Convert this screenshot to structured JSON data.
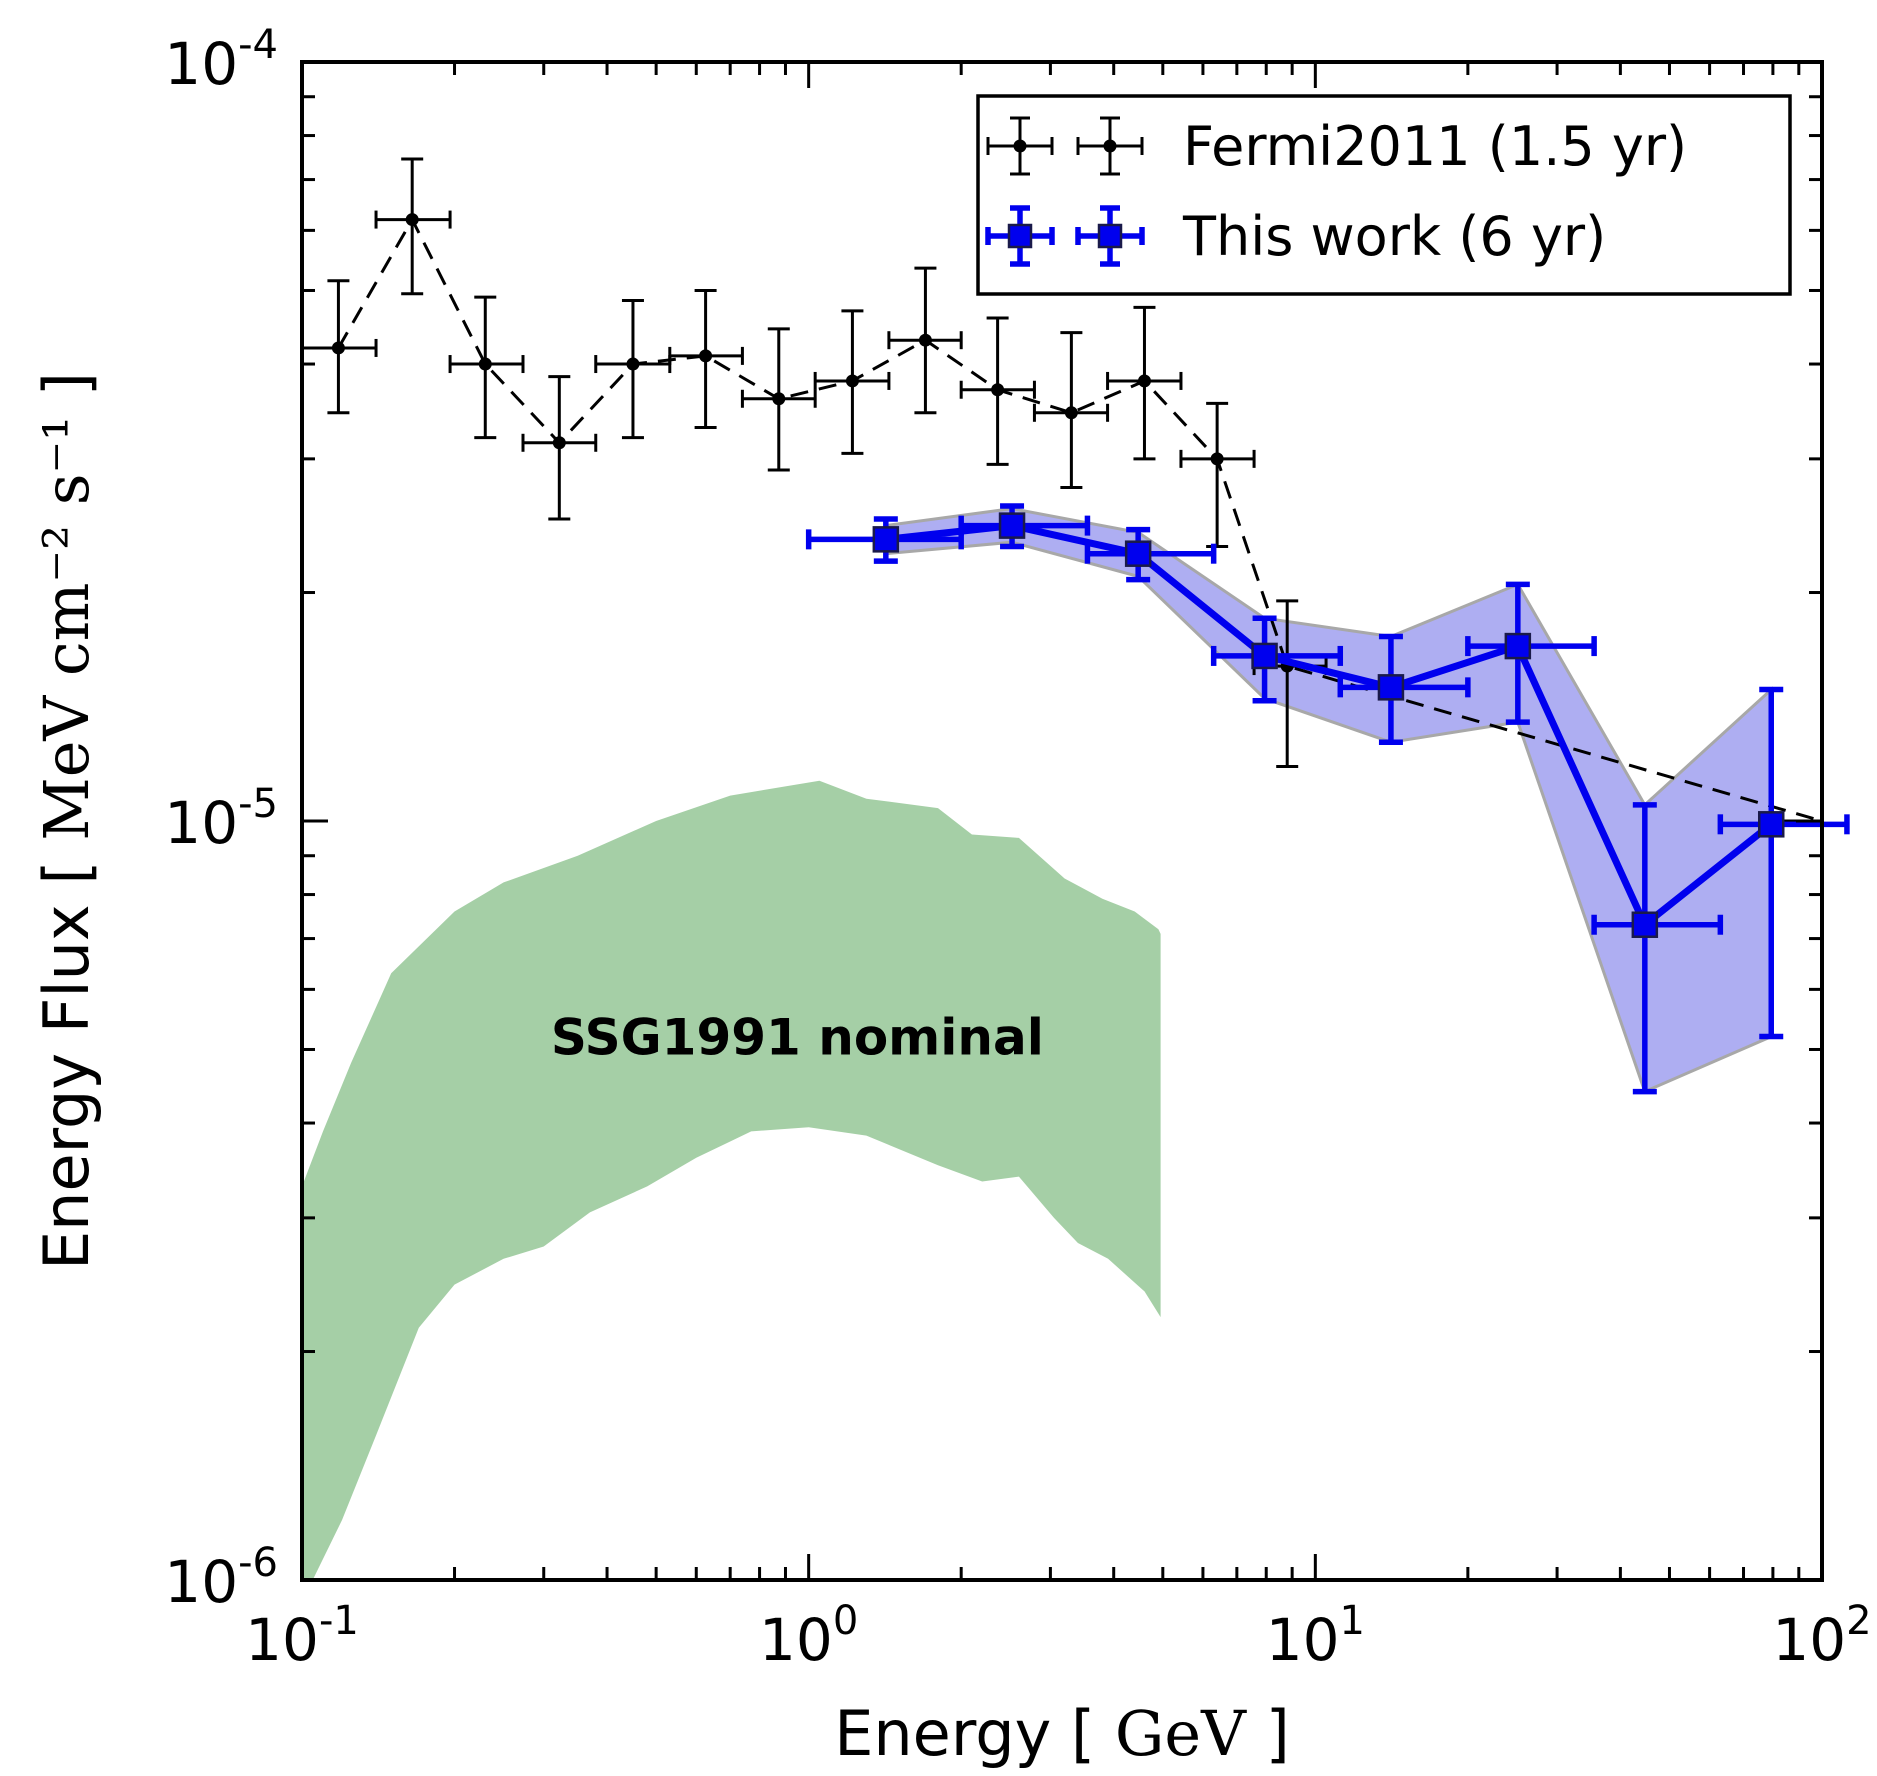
{
  "chart_data": {
    "type": "scatter",
    "xscale": "log",
    "yscale": "log",
    "xlim": [
      0.1,
      100
    ],
    "ylim": [
      1e-06,
      0.0001
    ],
    "xlabel": {
      "main": "Energy [ ",
      "unit": "GeV",
      "close": " ]"
    },
    "ylabel": {
      "main": "Energy Flux [ ",
      "unit": "MeV cm⁻² s⁻¹",
      "close": " ]"
    },
    "x_ticks": [
      {
        "value": 0.1,
        "base": "10",
        "exp": "-1"
      },
      {
        "value": 1,
        "base": "10",
        "exp": "0"
      },
      {
        "value": 10,
        "base": "10",
        "exp": "1"
      },
      {
        "value": 100,
        "base": "10",
        "exp": "2"
      }
    ],
    "y_ticks": [
      {
        "value": 1e-06,
        "base": "10",
        "exp": "-6"
      },
      {
        "value": 1e-05,
        "base": "10",
        "exp": "-5"
      },
      {
        "value": 0.0001,
        "base": "10",
        "exp": "-4"
      }
    ],
    "legend_position": "top-right",
    "series": [
      {
        "name": "Fermi2011 (1.5 yr)",
        "color": "#000000",
        "style": "dashed",
        "points": [
          {
            "x": 0.118,
            "y": 4.2e-05,
            "xlo": 0.1,
            "xhi": 0.14,
            "ylo": 3.45e-05,
            "yhi": 5.15e-05
          },
          {
            "x": 0.165,
            "y": 6.2e-05,
            "xlo": 0.14,
            "xhi": 0.196,
            "ylo": 4.95e-05,
            "yhi": 7.45e-05
          },
          {
            "x": 0.23,
            "y": 4e-05,
            "xlo": 0.196,
            "xhi": 0.273,
            "ylo": 3.2e-05,
            "yhi": 4.9e-05
          },
          {
            "x": 0.322,
            "y": 3.15e-05,
            "xlo": 0.273,
            "xhi": 0.38,
            "ylo": 2.5e-05,
            "yhi": 3.85e-05
          },
          {
            "x": 0.45,
            "y": 4e-05,
            "xlo": 0.38,
            "xhi": 0.532,
            "ylo": 3.2e-05,
            "yhi": 4.85e-05
          },
          {
            "x": 0.626,
            "y": 4.1e-05,
            "xlo": 0.532,
            "xhi": 0.74,
            "ylo": 3.3e-05,
            "yhi": 5e-05
          },
          {
            "x": 0.873,
            "y": 3.6e-05,
            "xlo": 0.74,
            "xhi": 1.03,
            "ylo": 2.9e-05,
            "yhi": 4.45e-05
          },
          {
            "x": 1.22,
            "y": 3.8e-05,
            "xlo": 1.03,
            "xhi": 1.44,
            "ylo": 3.05e-05,
            "yhi": 4.7e-05
          },
          {
            "x": 1.7,
            "y": 4.3e-05,
            "xlo": 1.44,
            "xhi": 2.0,
            "ylo": 3.45e-05,
            "yhi": 5.35e-05
          },
          {
            "x": 2.36,
            "y": 3.7e-05,
            "xlo": 2.0,
            "xhi": 2.79,
            "ylo": 2.95e-05,
            "yhi": 4.6e-05
          },
          {
            "x": 3.3,
            "y": 3.45e-05,
            "xlo": 2.79,
            "xhi": 3.89,
            "ylo": 2.75e-05,
            "yhi": 4.4e-05
          },
          {
            "x": 4.6,
            "y": 3.8e-05,
            "xlo": 3.89,
            "xhi": 5.43,
            "ylo": 3e-05,
            "yhi": 4.75e-05
          },
          {
            "x": 6.4,
            "y": 3e-05,
            "xlo": 5.43,
            "xhi": 7.57,
            "ylo": 2.3e-05,
            "yhi": 3.55e-05
          },
          {
            "x": 8.8,
            "y": 1.6e-05,
            "xlo": 7.57,
            "xhi": 10.5,
            "ylo": 1.18e-05,
            "yhi": 1.95e-05
          },
          {
            "x": 100,
            "y": 1e-05,
            "xlo": 78,
            "xhi": 100,
            "ylo": 1e-05,
            "yhi": 1e-05
          }
        ]
      },
      {
        "name": "This work (6 yr)",
        "color": "#0000ee",
        "band_color": "#aeaef2",
        "style": "solid",
        "points": [
          {
            "x": 1.42,
            "y": 2.35e-05,
            "xlo": 1.0,
            "xhi": 2.0,
            "ylo": 2.2e-05,
            "yhi": 2.5e-05,
            "band_lo": 2.25e-05,
            "band_hi": 2.45e-05
          },
          {
            "x": 2.52,
            "y": 2.45e-05,
            "xlo": 2.0,
            "xhi": 3.55,
            "ylo": 2.3e-05,
            "yhi": 2.6e-05,
            "band_lo": 2.33e-05,
            "band_hi": 2.58e-05
          },
          {
            "x": 4.47,
            "y": 2.25e-05,
            "xlo": 3.55,
            "xhi": 6.3,
            "ylo": 2.08e-05,
            "yhi": 2.42e-05,
            "band_lo": 2.1e-05,
            "band_hi": 2.4e-05
          },
          {
            "x": 7.94,
            "y": 1.65e-05,
            "xlo": 6.3,
            "xhi": 11.2,
            "ylo": 1.44e-05,
            "yhi": 1.85e-05,
            "band_lo": 1.45e-05,
            "band_hi": 1.85e-05
          },
          {
            "x": 14.1,
            "y": 1.5e-05,
            "xlo": 11.2,
            "xhi": 20.0,
            "ylo": 1.27e-05,
            "yhi": 1.75e-05,
            "band_lo": 1.27e-05,
            "band_hi": 1.75e-05
          },
          {
            "x": 25.1,
            "y": 1.7e-05,
            "xlo": 20.0,
            "xhi": 35.5,
            "ylo": 1.35e-05,
            "yhi": 2.05e-05,
            "band_lo": 1.35e-05,
            "band_hi": 2.05e-05
          },
          {
            "x": 44.7,
            "y": 7.3e-06,
            "xlo": 35.5,
            "xhi": 63.0,
            "ylo": 4.4e-06,
            "yhi": 1.05e-05,
            "band_lo": 4.4e-06,
            "band_hi": 1.05e-05
          },
          {
            "x": 79.4,
            "y": 9.9e-06,
            "xlo": 63.0,
            "xhi": 112,
            "ylo": 5.2e-06,
            "yhi": 1.49e-05,
            "band_lo": 5.2e-06,
            "band_hi": 1.49e-05
          }
        ]
      }
    ],
    "region": {
      "label": "SSG1991 nominal",
      "color": "#a5cfa6",
      "upper": [
        [
          0.1,
          3.3e-06
        ],
        [
          0.11,
          3.9e-06
        ],
        [
          0.125,
          4.8e-06
        ],
        [
          0.15,
          6.3e-06
        ],
        [
          0.2,
          7.6e-06
        ],
        [
          0.25,
          8.3e-06
        ],
        [
          0.35,
          9e-06
        ],
        [
          0.5,
          1e-05
        ],
        [
          0.7,
          1.08e-05
        ],
        [
          1.05,
          1.13e-05
        ],
        [
          1.3,
          1.07e-05
        ],
        [
          1.8,
          1.04e-05
        ],
        [
          2.1,
          9.6e-06
        ],
        [
          2.6,
          9.5e-06
        ],
        [
          3.2,
          8.4e-06
        ],
        [
          3.8,
          7.9e-06
        ],
        [
          4.4,
          7.6e-06
        ],
        [
          4.9,
          7.2e-06
        ],
        [
          4.95,
          7.1e-06
        ]
      ],
      "lower": [
        [
          4.95,
          2.22e-06
        ],
        [
          4.6,
          2.4e-06
        ],
        [
          3.9,
          2.65e-06
        ],
        [
          3.4,
          2.78e-06
        ],
        [
          3.05,
          3e-06
        ],
        [
          2.6,
          3.4e-06
        ],
        [
          2.2,
          3.35e-06
        ],
        [
          1.8,
          3.52e-06
        ],
        [
          1.3,
          3.85e-06
        ],
        [
          1.0,
          3.95e-06
        ],
        [
          0.77,
          3.9e-06
        ],
        [
          0.6,
          3.6e-06
        ],
        [
          0.48,
          3.3e-06
        ],
        [
          0.37,
          3.05e-06
        ],
        [
          0.3,
          2.75e-06
        ],
        [
          0.25,
          2.65e-06
        ],
        [
          0.2,
          2.45e-06
        ],
        [
          0.17,
          2.15e-06
        ],
        [
          0.14,
          1.55e-06
        ],
        [
          0.12,
          1.2e-06
        ],
        [
          0.105,
          1e-06
        ],
        [
          0.1,
          1e-06
        ]
      ]
    }
  }
}
